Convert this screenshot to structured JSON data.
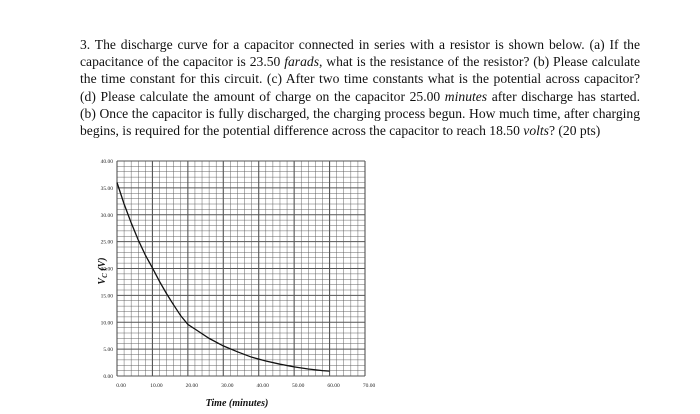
{
  "question": {
    "intro": "3. The discharge curve for a capacitor connected in series with a resistor is shown below. (a) If the capacitance of the capacitor is ",
    "cap_value": "23.50",
    "cap_unit": "farads",
    "after_cap": ", what is the resistance of the resistor? (b) Please calculate the time constant for this circuit. (c) After two time constants what is the potential across capacitor? (d) Please calculate the amount of charge on the capacitor ",
    "time_value": "25.00",
    "time_unit": "minutes",
    "after_time": " after discharge has started. (b) Once the capacitor is fully discharged, the charging process begun. How much time, after charging begins, is required for the potential difference across the capacitor to reach ",
    "volt_value": "18.50",
    "volt_unit": "volts",
    "ending": "? (20 pts)"
  },
  "chart_data": {
    "type": "line",
    "xlabel": "Time (minutes)",
    "ylabel": "V_C (V)",
    "xlim": [
      0,
      70
    ],
    "ylim": [
      0,
      40
    ],
    "x_ticks": [
      "0.00",
      "10.00",
      "20.00",
      "30.00",
      "40.00",
      "50.00",
      "60.00",
      "70.00"
    ],
    "y_ticks": [
      "0.00",
      "5.00",
      "10.00",
      "15.00",
      "20.00",
      "25.00",
      "30.00",
      "35.00",
      "40.00"
    ],
    "grid": true,
    "series": [
      {
        "x": [
          0,
          2,
          4,
          6,
          8,
          10,
          12,
          14,
          16,
          18,
          20,
          23,
          26,
          30,
          34,
          38,
          42,
          46,
          50,
          54,
          58,
          60
        ],
        "values": [
          36.0,
          32.0,
          28.5,
          25.3,
          22.5,
          20.1,
          17.6,
          15.3,
          13.2,
          11.2,
          9.6,
          8.3,
          7.0,
          5.6,
          4.5,
          3.5,
          2.8,
          2.2,
          1.7,
          1.3,
          1.0,
          0.9
        ]
      }
    ]
  }
}
